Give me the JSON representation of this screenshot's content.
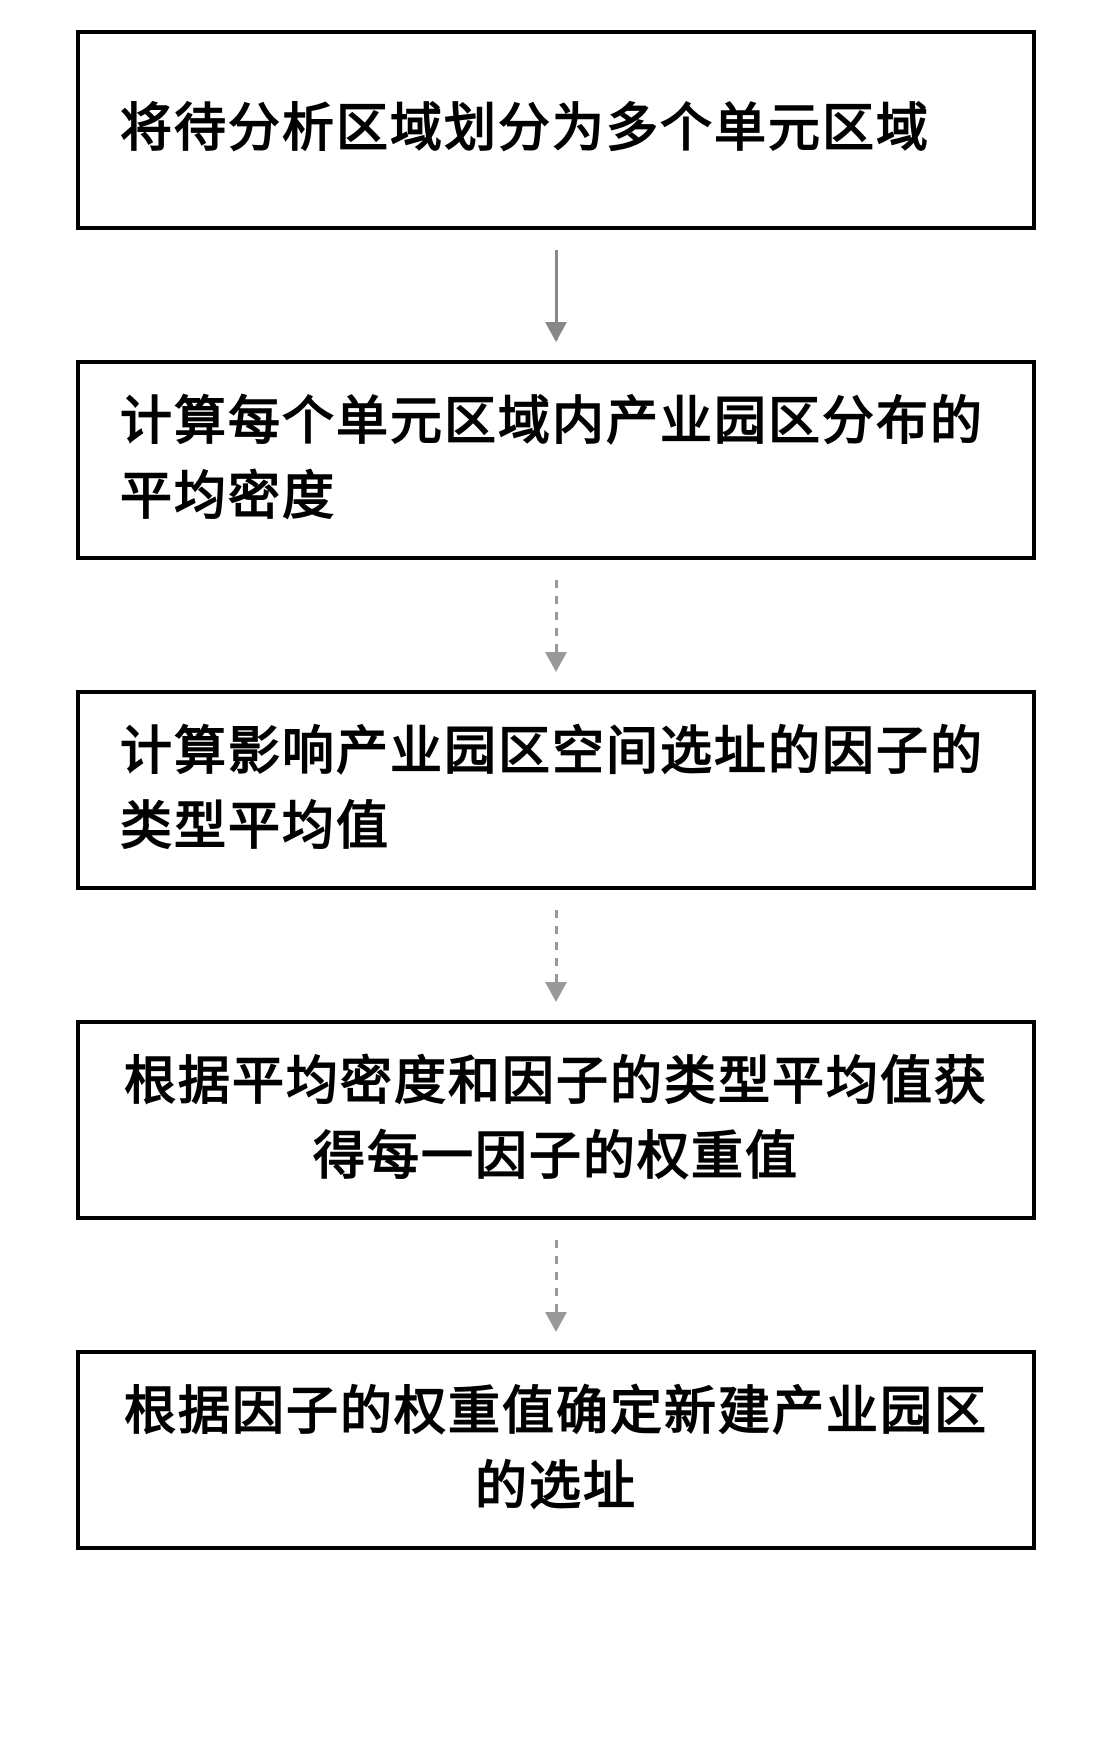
{
  "flowchart": {
    "type": "flowchart",
    "direction": "vertical",
    "background_color": "#ffffff",
    "box_border_color": "#000000",
    "box_border_width": 4,
    "text_color": "#000000",
    "font_size": 52,
    "font_weight": "bold",
    "font_family": "SimSun",
    "arrow_color": "#888888",
    "arrow_dotted_color": "#999999",
    "nodes": [
      {
        "id": "step1",
        "text": "将待分析区域划分为多个单元区域",
        "text_align": "left"
      },
      {
        "id": "step2",
        "text": "计算每个单元区域内产业园区分布的平均密度",
        "text_align": "left"
      },
      {
        "id": "step3",
        "text": "计算影响产业园区空间选址的因子的类型平均值",
        "text_align": "left"
      },
      {
        "id": "step4",
        "text": "根据平均密度和因子的类型平均值获得每一因子的权重值",
        "text_align": "center"
      },
      {
        "id": "step5",
        "text": "根据因子的权重值确定新建产业园区的选址",
        "text_align": "center"
      }
    ],
    "edges": [
      {
        "from": "step1",
        "to": "step2",
        "style": "solid"
      },
      {
        "from": "step2",
        "to": "step3",
        "style": "dotted"
      },
      {
        "from": "step3",
        "to": "step4",
        "style": "dotted"
      },
      {
        "from": "step4",
        "to": "step5",
        "style": "dotted"
      }
    ]
  }
}
